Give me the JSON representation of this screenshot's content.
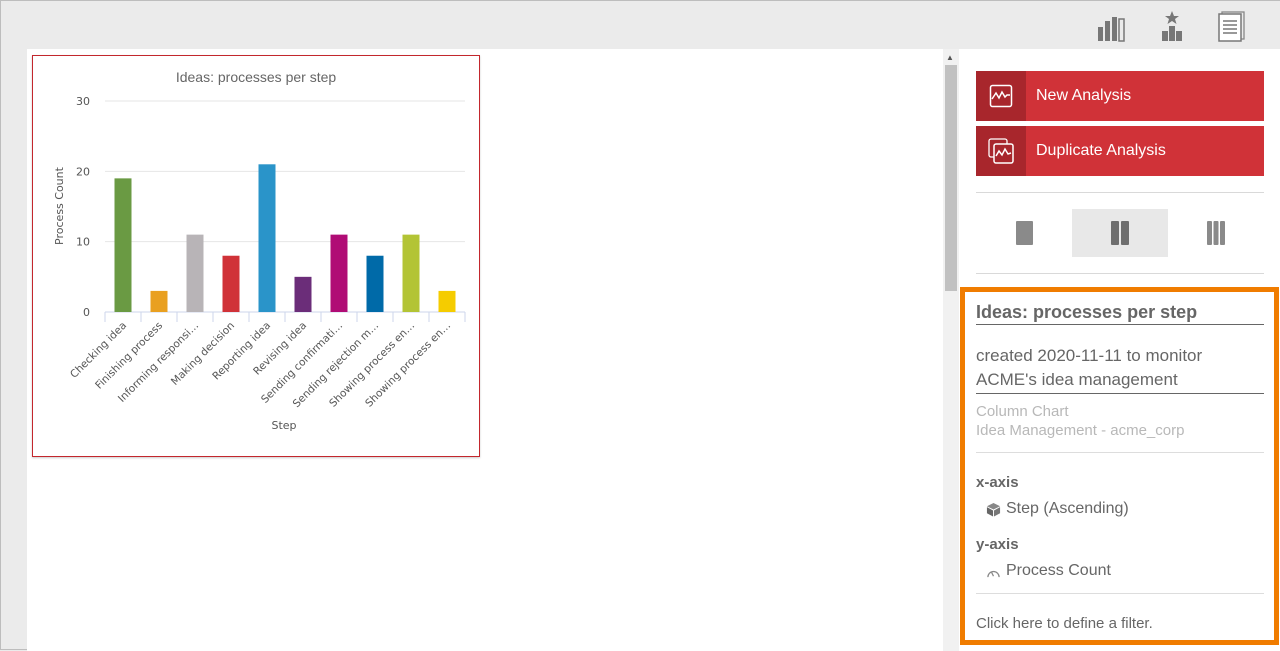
{
  "toolbar": {
    "icons": [
      "bar-chart-icon",
      "ranking-chart-icon",
      "report-pages-icon"
    ]
  },
  "panel": {
    "new_analysis": "New Analysis",
    "duplicate_analysis": "Duplicate Analysis",
    "layouts": [
      "one-column",
      "two-column",
      "three-column"
    ],
    "selected_layout": "two-column",
    "accent": "#d03238"
  },
  "info": {
    "title": "Ideas: processes per step",
    "description": "created 2020-11-11 to monitor ACME's idea management",
    "chart_type": "Column Chart",
    "source": "Idea Management - acme_corp",
    "x_axis_label": "x-axis",
    "x_axis_value": "Step (Ascending)",
    "y_axis_label": "y-axis",
    "y_axis_value": "Process Count",
    "filter_link": "Click here to define a filter.",
    "highlight_color": "#f07c00"
  },
  "chart_data": {
    "type": "bar",
    "title": "Ideas: processes per step",
    "xlabel": "Step",
    "ylabel": "Process Count",
    "ylim": [
      0,
      30
    ],
    "yticks": [
      0,
      10,
      20,
      30
    ],
    "grid": true,
    "categories": [
      "Checking idea",
      "Finishing process",
      "Informing responsi…",
      "Making decision",
      "Reporting idea",
      "Revising idea",
      "Sending confirmati…",
      "Sending rejection m…",
      "Showing process en…",
      "Showing process en…"
    ],
    "values": [
      19,
      3,
      11,
      8,
      21,
      5,
      11,
      8,
      11,
      3
    ],
    "colors": [
      "#6a9a43",
      "#e9a020",
      "#b8b4b7",
      "#d03238",
      "#2a94c9",
      "#6b2d79",
      "#b00c75",
      "#006aa8",
      "#b3c435",
      "#f5cc00"
    ]
  }
}
